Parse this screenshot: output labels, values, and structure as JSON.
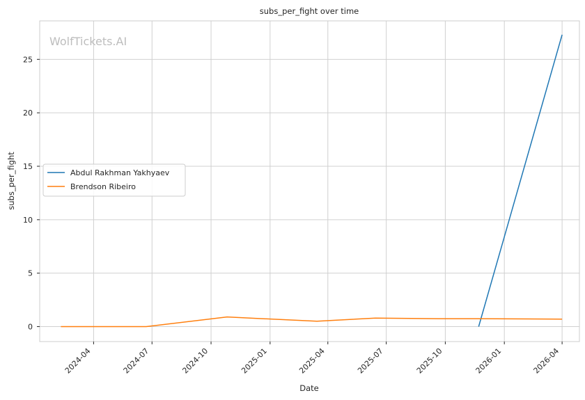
{
  "chart_data": {
    "type": "line",
    "title": "subs_per_fight over time",
    "xlabel": "Date",
    "ylabel": "subs_per_fight",
    "watermark": "WolfTickets.AI",
    "x_axis_type": "date",
    "xlim": [
      "2024-01-08",
      "2026-04-28"
    ],
    "ylim": [
      -1.4,
      28.6
    ],
    "x_ticks": [
      "2024-04-01",
      "2024-07-01",
      "2024-10-01",
      "2025-01-01",
      "2025-04-01",
      "2025-07-01",
      "2025-10-01",
      "2026-01-01",
      "2026-04-01"
    ],
    "x_tick_labels": [
      "2024-04",
      "2024-07",
      "2024-10",
      "2025-01",
      "2025-04",
      "2025-07",
      "2025-10",
      "2026-01",
      "2026-04"
    ],
    "y_ticks": [
      0,
      5,
      10,
      15,
      20,
      25
    ],
    "y_tick_labels": [
      "0",
      "5",
      "10",
      "15",
      "20",
      "25"
    ],
    "grid": true,
    "legend_position": "center-left",
    "series": [
      {
        "name": "Abdul Rakhman Yakhyaev",
        "color": "#1f77b4",
        "x": [
          "2025-11-22",
          "2026-04-01"
        ],
        "y": [
          0.0,
          27.3
        ]
      },
      {
        "name": "Brendson Ribeiro",
        "color": "#ff7f0e",
        "x": [
          "2024-02-10",
          "2024-06-22",
          "2024-10-26",
          "2025-03-15",
          "2025-06-14",
          "2025-09-20",
          "2025-11-22",
          "2026-04-01"
        ],
        "y": [
          0.0,
          0.0,
          0.9,
          0.5,
          0.8,
          0.74,
          0.74,
          0.7
        ]
      }
    ]
  }
}
